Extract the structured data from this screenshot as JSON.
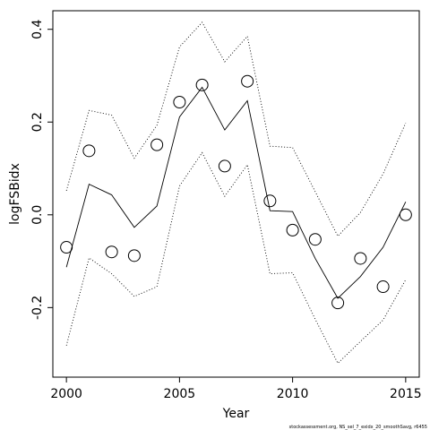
{
  "chart_data": {
    "type": "line",
    "title": "",
    "xlabel": "Year",
    "ylabel": "logFSBidx",
    "xlim": [
      1999.4,
      2015.6
    ],
    "ylim": [
      -0.35,
      0.44
    ],
    "x_ticks": [
      2000,
      2005,
      2010,
      2015
    ],
    "x_tick_labels": [
      "2000",
      "2005",
      "2010",
      "2015"
    ],
    "y_ticks": [
      -0.2,
      0.0,
      0.2,
      0.4
    ],
    "y_tick_labels": [
      "-0.2",
      "0.0",
      "0.2",
      "0.4"
    ],
    "grid": false,
    "legend": "none",
    "x": [
      2000,
      2001,
      2002,
      2003,
      2004,
      2005,
      2006,
      2007,
      2008,
      2009,
      2010,
      2011,
      2012,
      2013,
      2014,
      2015
    ],
    "series": [
      {
        "kind": "observed-points",
        "marker": "open-circle",
        "values": [
          -0.07,
          0.138,
          -0.08,
          -0.088,
          0.151,
          0.243,
          0.28,
          0.105,
          0.288,
          0.03,
          -0.033,
          -0.053,
          -0.19,
          -0.094,
          -0.155,
          0.0
        ]
      },
      {
        "kind": "fitted-line",
        "line_style": "solid",
        "values": [
          -0.113,
          0.066,
          0.043,
          -0.027,
          0.019,
          0.211,
          0.275,
          0.183,
          0.246,
          0.009,
          0.007,
          -0.094,
          -0.18,
          -0.133,
          -0.07,
          0.028
        ]
      },
      {
        "kind": "upper-bound",
        "line_style": "dotted",
        "values": [
          0.052,
          0.225,
          0.215,
          0.122,
          0.193,
          0.362,
          0.415,
          0.33,
          0.385,
          0.148,
          0.145,
          0.05,
          -0.046,
          0.005,
          0.088,
          0.198
        ]
      },
      {
        "kind": "lower-bound",
        "line_style": "dotted",
        "values": [
          -0.282,
          -0.093,
          -0.127,
          -0.176,
          -0.155,
          0.062,
          0.134,
          0.04,
          0.108,
          -0.127,
          -0.125,
          -0.225,
          -0.32,
          -0.273,
          -0.227,
          -0.14
        ]
      }
    ],
    "footnote": "stockassessment.org, NS_sel_7_exidx_20_smoothSavg, r6455"
  }
}
